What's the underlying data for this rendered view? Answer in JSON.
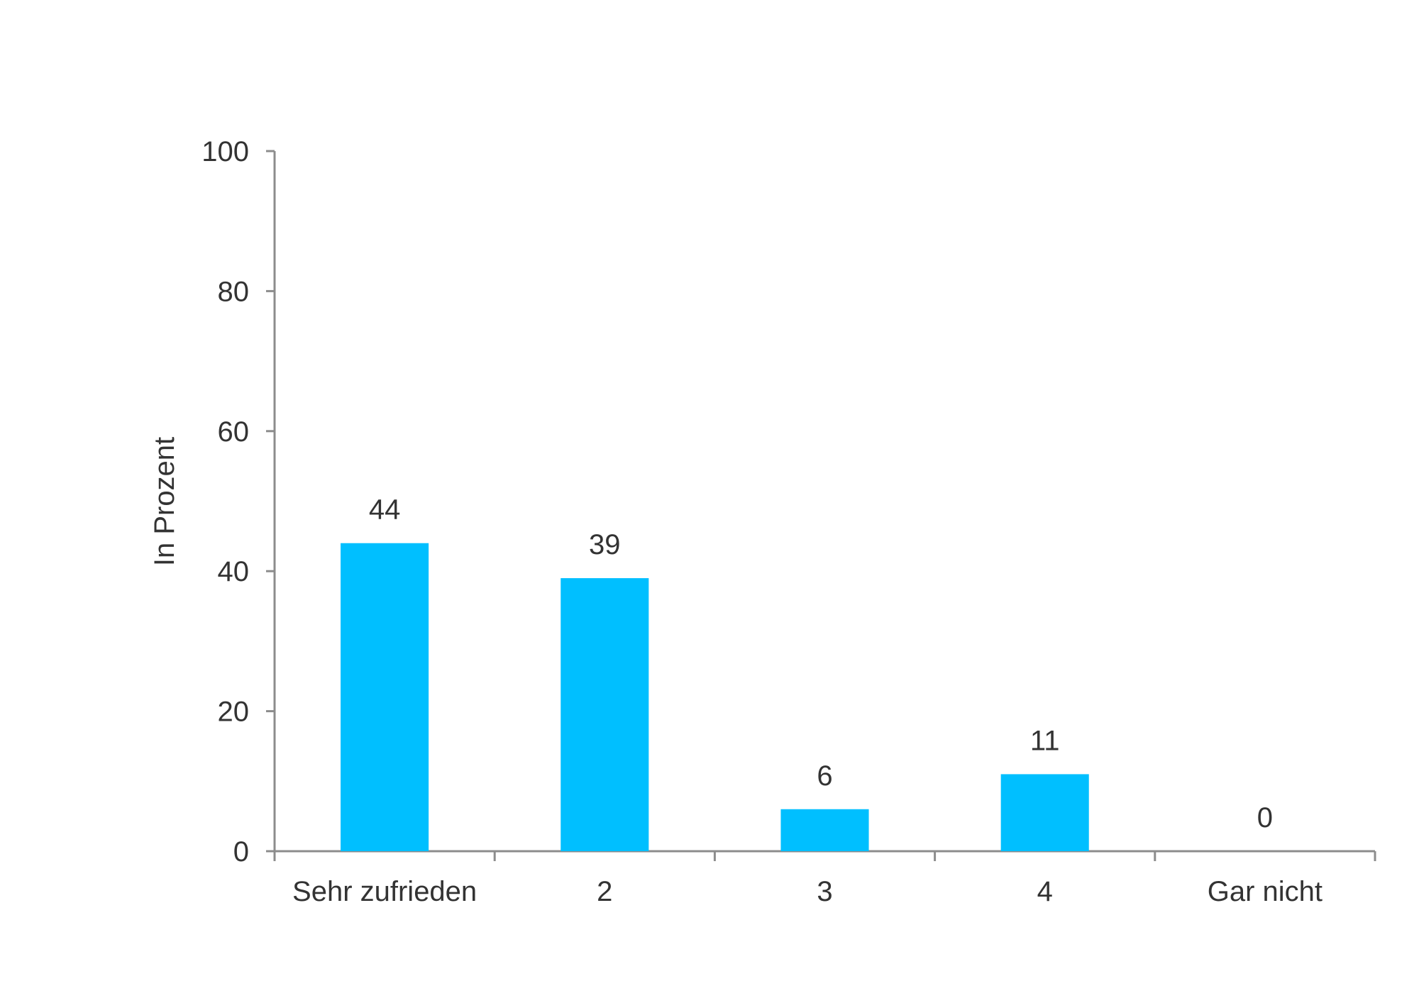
{
  "chart_data": {
    "type": "bar",
    "categories": [
      "Sehr zufrieden",
      "2",
      "3",
      "4",
      "Gar nicht"
    ],
    "values": [
      44,
      39,
      6,
      11,
      0
    ],
    "data_labels": [
      "44",
      "39",
      "6",
      "11",
      "0"
    ],
    "title": "",
    "xlabel": "",
    "ylabel": "In Prozent",
    "ylim": [
      0,
      100
    ],
    "yticks": [
      0,
      20,
      40,
      60,
      80,
      100
    ],
    "grid": false,
    "legend": "none",
    "colors": {
      "bar": "#00BFFF",
      "axis": "#8C8C8C",
      "text": "#333333"
    }
  }
}
